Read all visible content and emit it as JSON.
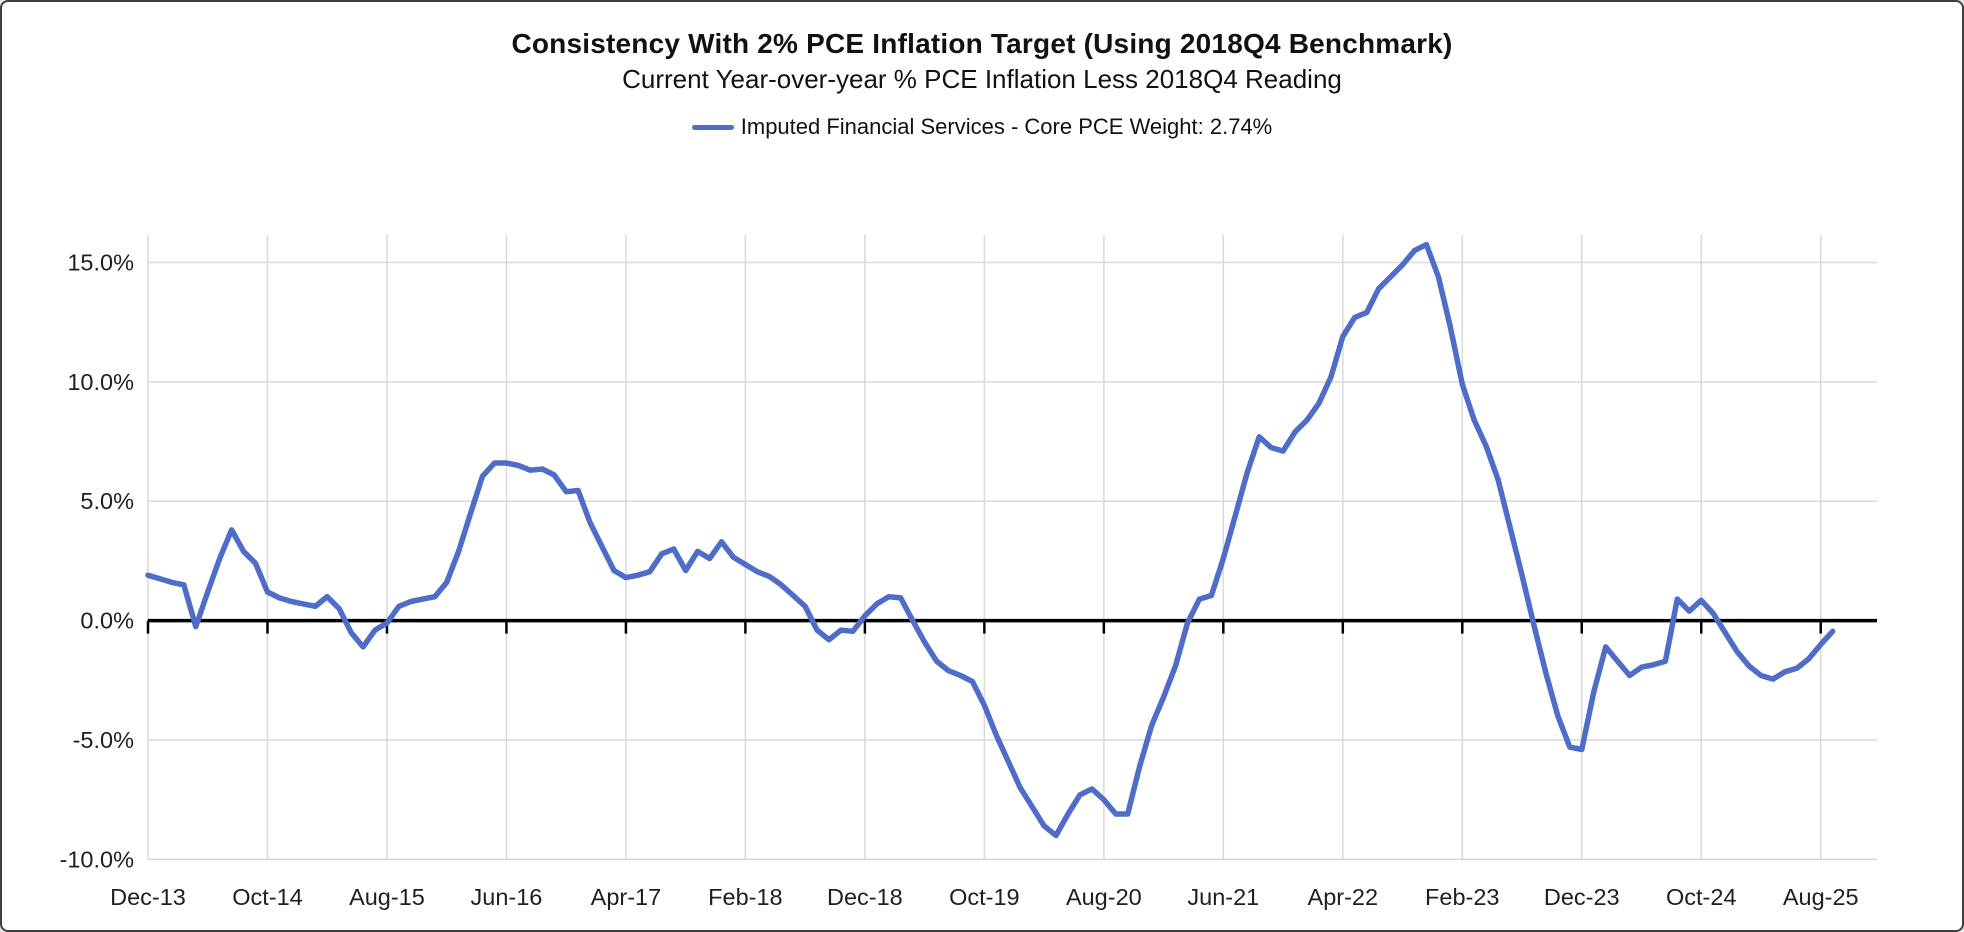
{
  "chart": {
    "title": "Consistency With 2% PCE Inflation Target (Using 2018Q4 Benchmark)",
    "subtitle": "Current Year-over-year % PCE Inflation Less 2018Q4 Reading",
    "legend": {
      "label": "Imputed Financial Services - Core PCE Weight: 2.74%",
      "color": "#4f6dc8"
    }
  },
  "chart_data": {
    "type": "line",
    "title": "Consistency With 2% PCE Inflation Target (Using 2018Q4 Benchmark)",
    "subtitle": "Current Year-over-year % PCE Inflation Less 2018Q4 Reading",
    "legend_position": "top",
    "grid": true,
    "ylim": [
      -10,
      15
    ],
    "y_tick_labels": [
      "15.0%",
      "10.0%",
      "5.0%",
      "0.0%",
      "-5.0%",
      "-10.0%"
    ],
    "y_tick_values": [
      15,
      10,
      5,
      0,
      -5,
      -10
    ],
    "x_tick_labels": [
      "Dec-13",
      "Oct-14",
      "Aug-15",
      "Jun-16",
      "Apr-17",
      "Feb-18",
      "Dec-18",
      "Oct-19",
      "Aug-20",
      "Jun-21",
      "Apr-22",
      "Feb-23",
      "Dec-23",
      "Oct-24",
      "Aug-25"
    ],
    "x_tick_every": 10,
    "zero_axis_color": "#000000",
    "gridline_color": "#d9d9d9",
    "series": [
      {
        "name": "Imputed Financial Services - Core PCE Weight: 2.74%",
        "color": "#4f6dc8",
        "x": [
          "Dec-13",
          "Jan-14",
          "Feb-14",
          "Mar-14",
          "Apr-14",
          "May-14",
          "Jun-14",
          "Jul-14",
          "Aug-14",
          "Sep-14",
          "Oct-14",
          "Nov-14",
          "Dec-14",
          "Jan-15",
          "Feb-15",
          "Mar-15",
          "Apr-15",
          "May-15",
          "Jun-15",
          "Jul-15",
          "Aug-15",
          "Sep-15",
          "Oct-15",
          "Nov-15",
          "Dec-15",
          "Jan-16",
          "Feb-16",
          "Mar-16",
          "Apr-16",
          "May-16",
          "Jun-16",
          "Jul-16",
          "Aug-16",
          "Sep-16",
          "Oct-16",
          "Nov-16",
          "Dec-16",
          "Jan-17",
          "Feb-17",
          "Mar-17",
          "Apr-17",
          "May-17",
          "Jun-17",
          "Jul-17",
          "Aug-17",
          "Sep-17",
          "Oct-17",
          "Nov-17",
          "Dec-17",
          "Jan-18",
          "Feb-18",
          "Mar-18",
          "Apr-18",
          "May-18",
          "Jun-18",
          "Jul-18",
          "Aug-18",
          "Sep-18",
          "Oct-18",
          "Nov-18",
          "Dec-18",
          "Jan-19",
          "Feb-19",
          "Mar-19",
          "Apr-19",
          "May-19",
          "Jun-19",
          "Jul-19",
          "Aug-19",
          "Sep-19",
          "Oct-19",
          "Nov-19",
          "Dec-19",
          "Jan-20",
          "Feb-20",
          "Mar-20",
          "Apr-20",
          "May-20",
          "Jun-20",
          "Jul-20",
          "Aug-20",
          "Sep-20",
          "Oct-20",
          "Nov-20",
          "Dec-20",
          "Jan-21",
          "Feb-21",
          "Mar-21",
          "Apr-21",
          "May-21",
          "Jun-21",
          "Jul-21",
          "Aug-21",
          "Sep-21",
          "Oct-21",
          "Nov-21",
          "Dec-21",
          "Jan-22",
          "Feb-22",
          "Mar-22",
          "Apr-22",
          "May-22",
          "Jun-22",
          "Jul-22",
          "Aug-22",
          "Sep-22",
          "Oct-22",
          "Nov-22",
          "Dec-22",
          "Jan-23",
          "Feb-23",
          "Mar-23",
          "Apr-23",
          "May-23",
          "Jun-23",
          "Jul-23",
          "Aug-23",
          "Sep-23",
          "Oct-23",
          "Nov-23",
          "Dec-23",
          "Jan-24",
          "Feb-24",
          "Mar-24",
          "Apr-24",
          "May-24",
          "Jun-24",
          "Jul-24",
          "Aug-24",
          "Sep-24",
          "Oct-24",
          "Nov-24",
          "Dec-24",
          "Jan-25",
          "Feb-25",
          "Mar-25",
          "Apr-25",
          "May-25",
          "Jun-25",
          "Jul-25",
          "Aug-25",
          "Sep-25"
        ],
        "values": [
          1.9,
          1.75,
          1.6,
          1.5,
          -0.25,
          1.2,
          2.6,
          3.8,
          2.9,
          2.4,
          1.2,
          0.95,
          0.8,
          0.7,
          0.6,
          1.0,
          0.5,
          -0.5,
          -1.1,
          -0.4,
          -0.1,
          0.6,
          0.8,
          0.9,
          1.0,
          1.6,
          2.9,
          4.5,
          6.05,
          6.6,
          6.6,
          6.5,
          6.3,
          6.35,
          6.1,
          5.4,
          5.45,
          4.1,
          3.1,
          2.1,
          1.8,
          1.9,
          2.05,
          2.8,
          3.0,
          2.1,
          2.9,
          2.6,
          3.3,
          2.65,
          2.35,
          2.05,
          1.85,
          1.5,
          1.05,
          0.6,
          -0.4,
          -0.8,
          -0.4,
          -0.45,
          0.2,
          0.7,
          1.0,
          0.95,
          0.0,
          -0.9,
          -1.7,
          -2.1,
          -2.3,
          -2.55,
          -3.55,
          -4.8,
          -5.9,
          -7.0,
          -7.8,
          -8.6,
          -9.0,
          -8.1,
          -7.3,
          -7.05,
          -7.5,
          -8.1,
          -8.1,
          -6.1,
          -4.4,
          -3.2,
          -1.9,
          -0.1,
          0.9,
          1.05,
          2.6,
          4.4,
          6.2,
          7.7,
          7.25,
          7.1,
          7.9,
          8.4,
          9.1,
          10.2,
          11.9,
          12.7,
          12.9,
          13.9,
          14.4,
          14.9,
          15.5,
          15.75,
          14.4,
          12.3,
          9.9,
          8.4,
          7.3,
          5.9,
          3.9,
          1.9,
          -0.2,
          -2.2,
          -4.0,
          -5.3,
          -5.4,
          -3.0,
          -1.1,
          -1.7,
          -2.3,
          -1.95,
          -1.85,
          -1.7,
          0.9,
          0.4,
          0.85,
          0.3,
          -0.5,
          -1.3,
          -1.9,
          -2.3,
          -2.45,
          -2.15,
          -2.0,
          -1.6,
          -1.0,
          -0.45
        ]
      }
    ]
  }
}
